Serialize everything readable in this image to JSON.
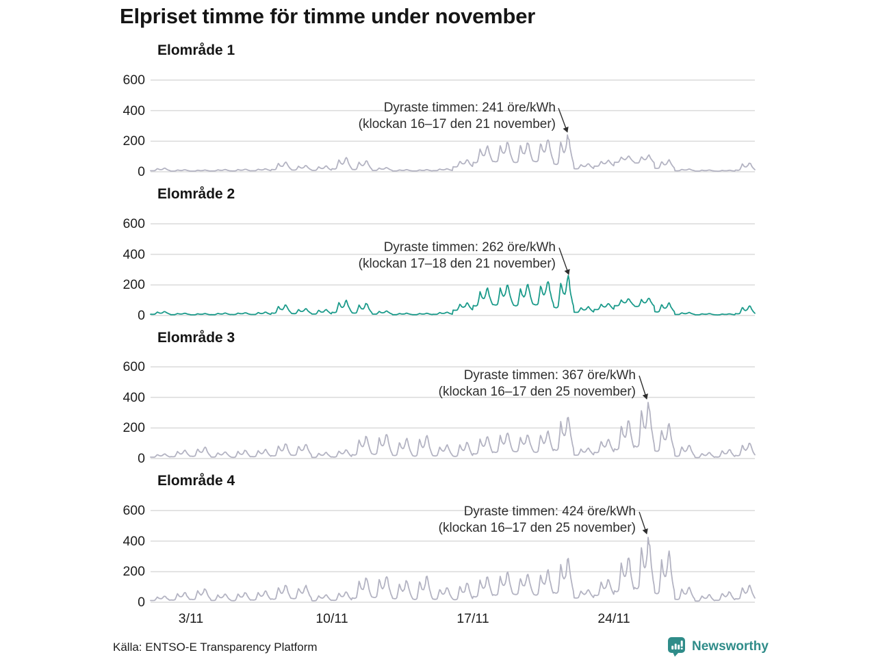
{
  "title": "Elpriset timme för timme under november",
  "source": "Källa: ENTSO-E Transparency Platform",
  "brand": {
    "name": "Newsworthy",
    "color": "#2f8c89"
  },
  "axes": {
    "y_ticks": [
      "600",
      "400",
      "200",
      "0"
    ],
    "x_ticks": [
      "3/11",
      "10/11",
      "17/11",
      "24/11"
    ],
    "x_tick_days": [
      3,
      10,
      17,
      24
    ],
    "ylim": [
      0,
      600
    ],
    "x_range_days": 30,
    "grid": "horizontal-only"
  },
  "colors": {
    "line_gray": "#b3b3c2",
    "line_teal": "#1a9a8a",
    "gridline": "#dadada",
    "text_dark": "#1d1d1d",
    "annotation_text": "#2e2e2e"
  },
  "chart_data": [
    {
      "type": "line",
      "label": "Elområde 1",
      "unit": "öre/kWh",
      "color": "#b3b3c2",
      "annotation_line1": "Dyraste timmen: 241 öre/kWh",
      "annotation_line2": "(klockan 16–17 den 21 november)",
      "max": {
        "value": 241,
        "day": 21,
        "hour": 16
      },
      "daily_low": [
        6,
        4,
        4,
        5,
        5,
        6,
        12,
        10,
        8,
        15,
        12,
        8,
        5,
        5,
        7,
        30,
        55,
        60,
        55,
        60,
        40,
        18,
        35,
        60,
        55,
        20,
        6,
        4,
        4,
        8
      ],
      "daily_peak": [
        24,
        14,
        12,
        15,
        17,
        20,
        65,
        42,
        38,
        95,
        75,
        28,
        14,
        14,
        20,
        78,
        170,
        195,
        197,
        220,
        241,
        55,
        75,
        105,
        110,
        78,
        18,
        12,
        10,
        60
      ]
    },
    {
      "type": "line",
      "label": "Elområde 2",
      "unit": "öre/kWh",
      "color": "#1a9a8a",
      "annotation_line1": "Dyraste timmen: 262 öre/kWh",
      "annotation_line2": "(klockan 17–18 den 21 november)",
      "max": {
        "value": 262,
        "day": 21,
        "hour": 17
      },
      "daily_low": [
        7,
        5,
        4,
        5,
        6,
        6,
        13,
        11,
        8,
        16,
        13,
        8,
        5,
        5,
        7,
        32,
        58,
        63,
        58,
        63,
        42,
        19,
        37,
        62,
        57,
        21,
        6,
        4,
        4,
        9
      ],
      "daily_peak": [
        26,
        15,
        13,
        16,
        18,
        22,
        70,
        45,
        40,
        100,
        80,
        30,
        15,
        15,
        22,
        82,
        178,
        205,
        207,
        230,
        262,
        58,
        80,
        110,
        115,
        82,
        20,
        13,
        11,
        64
      ]
    },
    {
      "type": "line",
      "label": "Elområde 3",
      "unit": "öre/kWh",
      "color": "#b3b3c2",
      "annotation_line1": "Dyraste timmen: 367 öre/kWh",
      "annotation_line2": "(klockan 16–17 den 25 november)",
      "max": {
        "value": 367,
        "day": 25,
        "hour": 16
      },
      "daily_low": [
        8,
        10,
        12,
        8,
        6,
        10,
        14,
        18,
        6,
        8,
        18,
        22,
        15,
        10,
        14,
        10,
        25,
        35,
        40,
        35,
        45,
        20,
        35,
        50,
        65,
        40,
        12,
        5,
        8,
        15
      ],
      "daily_peak": [
        30,
        55,
        76,
        45,
        55,
        60,
        98,
        95,
        40,
        60,
        150,
        160,
        130,
        156,
        90,
        110,
        150,
        175,
        160,
        185,
        280,
        70,
        130,
        255,
        367,
        225,
        90,
        40,
        60,
        105
      ]
    },
    {
      "type": "line",
      "label": "Elområde 4",
      "unit": "öre/kWh",
      "color": "#b3b3c2",
      "annotation_line1": "Dyraste timmen: 424 öre/kWh",
      "annotation_line2": "(klockan 16–17 den 25 november)",
      "max": {
        "value": 424,
        "day": 25,
        "hour": 16
      },
      "daily_low": [
        10,
        12,
        15,
        10,
        8,
        12,
        16,
        20,
        8,
        10,
        20,
        25,
        18,
        12,
        16,
        12,
        30,
        40,
        45,
        40,
        50,
        25,
        40,
        60,
        75,
        45,
        15,
        6,
        10,
        18
      ],
      "daily_peak": [
        40,
        65,
        90,
        55,
        65,
        75,
        115,
        110,
        50,
        70,
        165,
        175,
        145,
        170,
        100,
        130,
        170,
        195,
        185,
        215,
        285,
        85,
        150,
        300,
        424,
        330,
        100,
        50,
        70,
        112
      ]
    }
  ]
}
